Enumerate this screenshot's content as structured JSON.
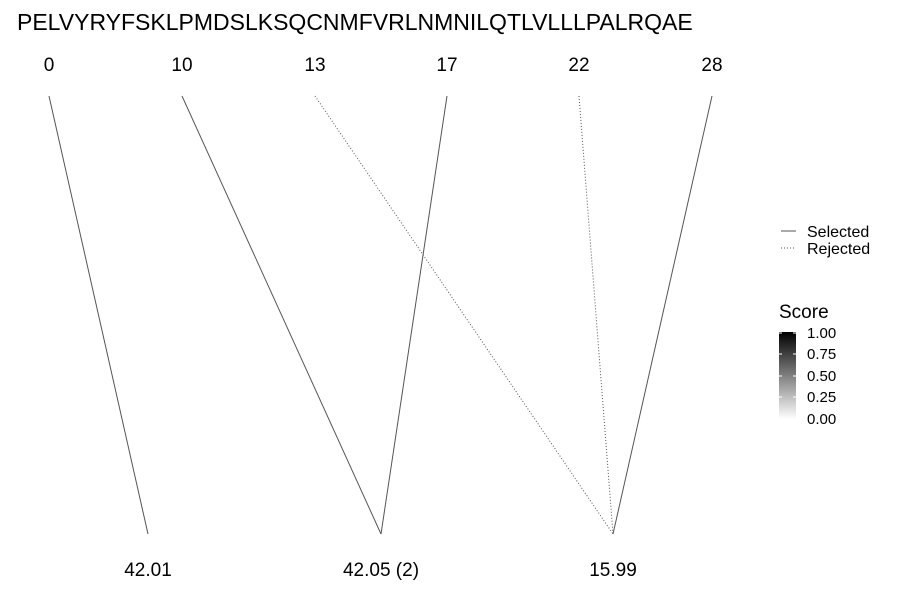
{
  "diagram": {
    "sequence": "PELVYRYFSKLPMDSLKSQCNMFVRLNMNILQTLVLLLPALRQAE",
    "positions": [
      "0",
      "10",
      "13",
      "17",
      "22",
      "28"
    ],
    "masses": [
      "42.01",
      "42.05 (2)",
      "15.99"
    ],
    "links": [
      {
        "from": 0,
        "to": 0,
        "status": "selected",
        "score": 1.0
      },
      {
        "from": 1,
        "to": 1,
        "status": "selected",
        "score": 1.0
      },
      {
        "from": 3,
        "to": 1,
        "status": "selected",
        "score": 1.0
      },
      {
        "from": 2,
        "to": 2,
        "status": "rejected",
        "score": 1.0
      },
      {
        "from": 4,
        "to": 2,
        "status": "rejected",
        "score": 1.0
      },
      {
        "from": 5,
        "to": 2,
        "status": "selected",
        "score": 1.0
      }
    ]
  },
  "legend": {
    "linetype": {
      "selected_label": "Selected",
      "rejected_label": "Rejected"
    },
    "score": {
      "title": "Score",
      "ticks": [
        "1.00",
        "0.75",
        "0.50",
        "0.25",
        "0.00"
      ],
      "low_color": "#ffffff",
      "high_color": "#000000"
    }
  },
  "colors": {
    "line": "#555555"
  }
}
